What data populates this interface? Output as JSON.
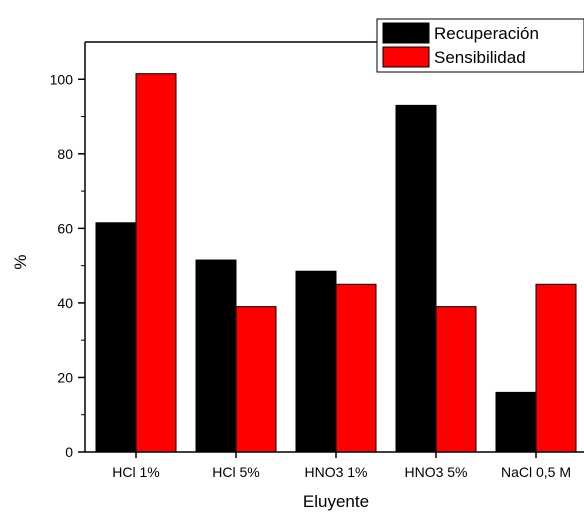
{
  "chart_data": {
    "type": "bar",
    "xlabel": "Eluyente",
    "ylabel": "%",
    "categories": [
      "HCl 1%",
      "HCl 5%",
      "HNO3 1%",
      "HNO3 5%",
      "NaCl 0,5 M"
    ],
    "series": [
      {
        "name": "Recuperación",
        "color": "#000000",
        "values": [
          61.5,
          51.5,
          48.5,
          93.0,
          16.0
        ]
      },
      {
        "name": "Sensibilidad",
        "color": "#ff0000",
        "values": [
          101.5,
          39.0,
          45.0,
          39.0,
          45.0
        ]
      }
    ],
    "ylim": [
      0,
      110
    ],
    "yticks": [
      0,
      20,
      40,
      60,
      80,
      100
    ],
    "grid": false,
    "legend": "top-right"
  }
}
